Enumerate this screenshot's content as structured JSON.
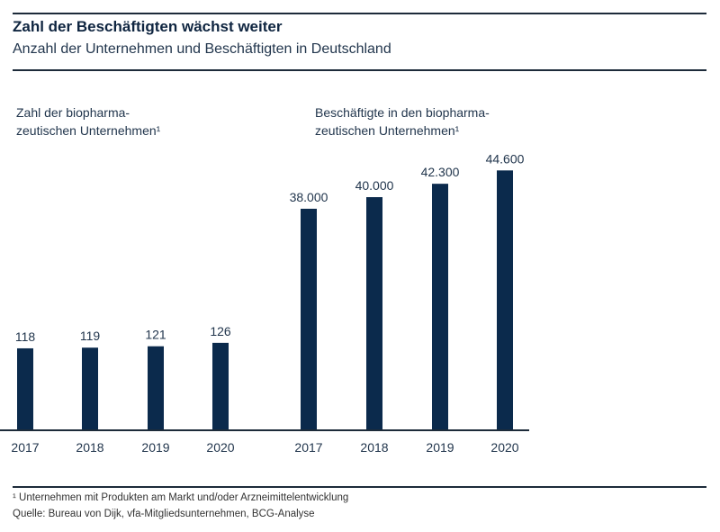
{
  "header": {
    "title": "Zahl der Beschäftigten wächst weiter",
    "subtitle": "Anzahl der Unternehmen und Beschäftigten in Deutschland"
  },
  "chart_data": [
    {
      "type": "bar",
      "title_line1": "Zahl der biopharma-",
      "title_line2": "zeutischen Unternehmen¹",
      "categories": [
        "2017",
        "2018",
        "2019",
        "2020"
      ],
      "values": [
        118,
        119,
        121,
        126
      ],
      "value_labels": [
        "118",
        "119",
        "121",
        "126"
      ],
      "color": "#0b2a4c"
    },
    {
      "type": "bar",
      "title_line1": "Beschäftigte in den biopharma-",
      "title_line2": "zeutischen Unternehmen¹",
      "categories": [
        "2017",
        "2018",
        "2019",
        "2020"
      ],
      "values": [
        38000,
        40000,
        42300,
        44600
      ],
      "value_labels": [
        "38.000",
        "40.000",
        "42.300",
        "44.600"
      ],
      "color": "#0b2a4c"
    }
  ],
  "footer": {
    "footnote": "¹ Unternehmen mit Produkten am Markt und/oder Arzneimittelentwicklung",
    "source": "Quelle: Bureau von Dijk, vfa-Mitgliedsunternehmen, BCG-Analyse"
  }
}
